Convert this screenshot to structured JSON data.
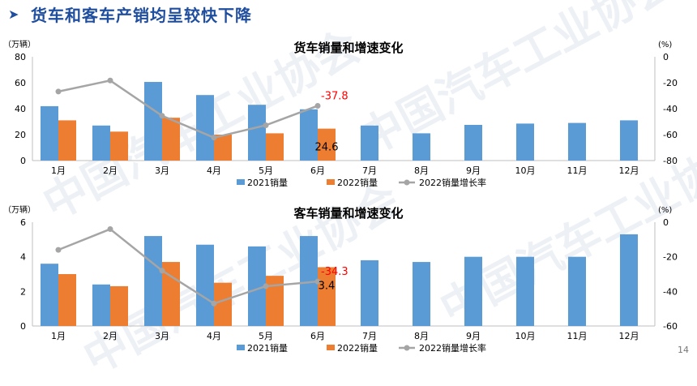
{
  "header": {
    "title": "货车和客车产销均呈较快下降",
    "arrow_icon": "arrow-right-icon"
  },
  "watermark": {
    "text": "中国汽车工业协会"
  },
  "page_number": "14",
  "colors": {
    "bar2021": "#5b9bd5",
    "bar2022": "#ed7d31",
    "growth": "#a5a5a5",
    "title": "#1f4e9e",
    "annotation": "#ff0000"
  },
  "chart_data": [
    {
      "type": "bar",
      "title": "货车销量和增速变化",
      "left_unit": "（万辆）",
      "right_unit": "(%)",
      "categories": [
        "1月",
        "2月",
        "3月",
        "4月",
        "5月",
        "6月",
        "7月",
        "8月",
        "9月",
        "10月",
        "11月",
        "12月"
      ],
      "series": [
        {
          "name": "2021销量",
          "kind": "bar",
          "axis": "left",
          "values": [
            41.9,
            27.0,
            60.6,
            50.5,
            43.0,
            39.5,
            27.0,
            21.0,
            27.5,
            28.5,
            29.0,
            31.0
          ]
        },
        {
          "name": "2022销量",
          "kind": "bar",
          "axis": "left",
          "values": [
            31.0,
            22.3,
            33.0,
            20.0,
            21.0,
            24.6,
            null,
            null,
            null,
            null,
            null,
            null
          ]
        },
        {
          "name": "2022销量增长率",
          "kind": "line",
          "axis": "right",
          "values": [
            -26.8,
            -18.3,
            -45.5,
            -62.3,
            -52.8,
            -37.8,
            null,
            null,
            null,
            null,
            null,
            null
          ]
        }
      ],
      "ylim_left": [
        0,
        80
      ],
      "ylim_right": [
        -80,
        0
      ],
      "yticks_left": [
        "0",
        "20",
        "40",
        "60",
        "80"
      ],
      "yticks_right": [
        "-80",
        "-60",
        "-40",
        "-20",
        "0"
      ],
      "annotations": [
        {
          "text": "-37.8",
          "series": "2022销量增长率",
          "category": "6月"
        },
        {
          "text": "24.6",
          "series": "2022销量",
          "category": "6月"
        }
      ],
      "legend": "bottom"
    },
    {
      "type": "bar",
      "title": "客车销量和增速变化",
      "left_unit": "（万辆）",
      "right_unit": "(%)",
      "categories": [
        "1月",
        "2月",
        "3月",
        "4月",
        "5月",
        "6月",
        "7月",
        "8月",
        "9月",
        "10月",
        "11月",
        "12月"
      ],
      "series": [
        {
          "name": "2021销量",
          "kind": "bar",
          "axis": "left",
          "values": [
            3.6,
            2.4,
            5.2,
            4.7,
            4.6,
            5.2,
            3.8,
            3.7,
            4.0,
            4.0,
            4.0,
            5.3
          ]
        },
        {
          "name": "2022销量",
          "kind": "bar",
          "axis": "left",
          "values": [
            3.0,
            2.3,
            3.7,
            2.5,
            2.9,
            3.4,
            null,
            null,
            null,
            null,
            null,
            null
          ]
        },
        {
          "name": "2022销量增长率",
          "kind": "line",
          "axis": "right",
          "values": [
            -16.0,
            -4.0,
            -28.0,
            -47.0,
            -37.0,
            -34.3,
            null,
            null,
            null,
            null,
            null,
            null
          ]
        }
      ],
      "ylim_left": [
        0,
        6
      ],
      "ylim_right": [
        -60,
        0
      ],
      "yticks_left": [
        "0",
        "2",
        "4",
        "6"
      ],
      "yticks_right": [
        "-60",
        "-40",
        "-20",
        "0"
      ],
      "annotations": [
        {
          "text": "-34.3",
          "series": "2022销量增长率",
          "category": "6月"
        },
        {
          "text": "3.4",
          "series": "2022销量",
          "category": "6月"
        }
      ],
      "legend": "bottom"
    }
  ]
}
